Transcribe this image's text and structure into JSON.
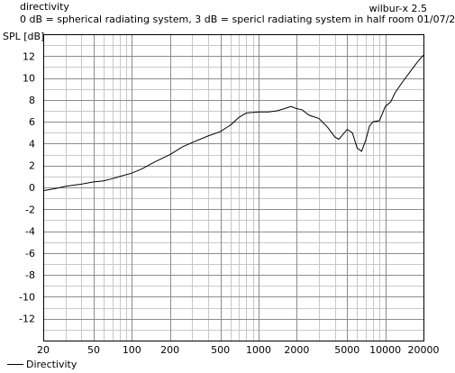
{
  "header": {
    "title": "directivity",
    "subtitle": "0 dB = spherical radiating system, 3 dB = spericl radiating system in half room 01/07/2018",
    "brand": "wilbur-x 2.5"
  },
  "legend": {
    "label": "Directivity"
  },
  "chart_data": {
    "type": "line",
    "title": "directivity",
    "subtitle": "0 dB = spherical radiating system, 3 dB = spericl radiating system in half room 01/07/2018",
    "xlabel": "",
    "ylabel": "SPL [dB]",
    "xscale": "log",
    "xlim": [
      20,
      20000
    ],
    "ylim": [
      -14,
      14
    ],
    "xticks": [
      20,
      50,
      100,
      200,
      500,
      1000,
      2000,
      5000,
      10000,
      20000
    ],
    "xtick_labels": [
      "20",
      "50",
      "100",
      "200",
      "500",
      "1000",
      "2000",
      "5000",
      "10000",
      "20000"
    ],
    "yticks": [
      12,
      10,
      8,
      6,
      4,
      2,
      0,
      -2,
      -4,
      -6,
      -8,
      -10,
      -12
    ],
    "ytick_labels": [
      "12",
      "10",
      "8",
      "6",
      "4",
      "2",
      "0",
      "-2",
      "-4",
      "-6",
      "-8",
      "-10",
      "-12"
    ],
    "grid": true,
    "legend_position": "bottom-left",
    "line_color": "#000000",
    "series": [
      {
        "name": "Directivity",
        "x": [
          20,
          25,
          30,
          40,
          50,
          60,
          70,
          80,
          100,
          120,
          150,
          200,
          250,
          300,
          400,
          500,
          600,
          700,
          800,
          1000,
          1200,
          1400,
          1600,
          1800,
          2000,
          2200,
          2500,
          3000,
          3500,
          4000,
          4300,
          4600,
          5000,
          5500,
          6000,
          6500,
          7000,
          7500,
          8000,
          9000,
          10000,
          11000,
          12000,
          14000,
          16000,
          18000,
          20000
        ],
        "y": [
          -0.3,
          -0.1,
          0.1,
          0.3,
          0.5,
          0.6,
          0.8,
          1.0,
          1.3,
          1.7,
          2.3,
          3.0,
          3.7,
          4.1,
          4.7,
          5.1,
          5.7,
          6.4,
          6.8,
          6.9,
          6.9,
          7.0,
          7.2,
          7.4,
          7.2,
          7.1,
          6.6,
          6.3,
          5.5,
          4.6,
          4.4,
          4.8,
          5.3,
          5.0,
          3.6,
          3.3,
          4.3,
          5.6,
          6.0,
          6.1,
          7.4,
          7.8,
          8.7,
          9.8,
          10.7,
          11.5,
          12.1
        ]
      }
    ]
  }
}
